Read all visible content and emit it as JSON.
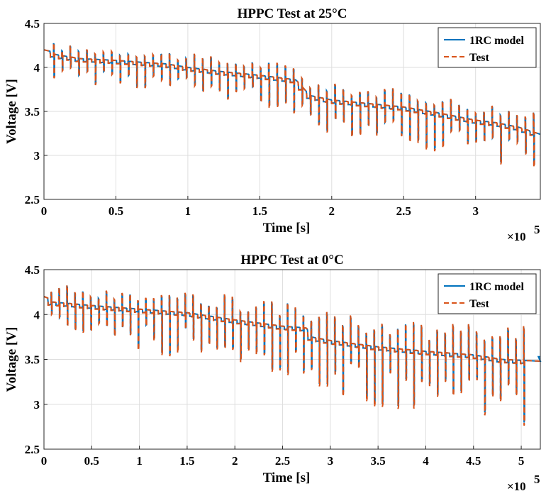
{
  "chart_data": [
    {
      "type": "line",
      "title": "HPPC Test at 25°C",
      "xlabel": "Time [s]",
      "ylabel": "Voltage [V]",
      "x_multiplier": "×10",
      "x_multiplier_exp": "5",
      "xlim": [
        0,
        3.45
      ],
      "ylim": [
        2.5,
        4.5
      ],
      "x_ticks": [
        0,
        0.5,
        1,
        1.5,
        2,
        2.5,
        3
      ],
      "x_tick_labels": [
        "0",
        "0.5",
        "1",
        "1.5",
        "2",
        "2.5",
        "3"
      ],
      "y_ticks": [
        2.5,
        3,
        3.5,
        4,
        4.5
      ],
      "y_tick_labels": [
        "2.5",
        "3",
        "3.5",
        "4",
        "4.5"
      ],
      "grid": true,
      "legend_position": "top-right",
      "series": [
        {
          "name": "1RC model",
          "color": "#0072bd",
          "style": "solid"
        },
        {
          "name": "Test",
          "color": "#d95319",
          "style": "dashed"
        }
      ],
      "baseline_voltage": [
        [
          0,
          4.2
        ],
        [
          0.05,
          4.18
        ],
        [
          0.07,
          4.15
        ],
        [
          0.25,
          4.1
        ],
        [
          0.5,
          4.08
        ],
        [
          0.75,
          4.05
        ],
        [
          0.85,
          4.04
        ],
        [
          1.0,
          4.0
        ],
        [
          1.25,
          3.95
        ],
        [
          1.5,
          3.91
        ],
        [
          1.75,
          3.86
        ],
        [
          1.85,
          3.68
        ],
        [
          2.0,
          3.63
        ],
        [
          2.25,
          3.59
        ],
        [
          2.5,
          3.55
        ],
        [
          2.75,
          3.48
        ],
        [
          3.0,
          3.4
        ],
        [
          3.15,
          3.37
        ],
        [
          3.3,
          3.32
        ],
        [
          3.45,
          3.24
        ]
      ],
      "pulse_spacing": 0.0575,
      "pulse_start": 0.07,
      "pulse_end": 3.43,
      "pulse_up_depth": 0.15,
      "pulse_down_depth": 0.2,
      "pulse_depth_growth": 0.25
    },
    {
      "type": "line",
      "title": "HPPC Test at 0°C",
      "xlabel": "Time [s]",
      "ylabel": "Voltage [V]",
      "x_multiplier": "×10",
      "x_multiplier_exp": "5",
      "xlim": [
        0,
        5.2
      ],
      "ylim": [
        2.5,
        4.5
      ],
      "x_ticks": [
        0,
        0.5,
        1,
        1.5,
        2,
        2.5,
        3,
        3.5,
        4,
        4.5,
        5
      ],
      "x_tick_labels": [
        "0",
        "0.5",
        "1",
        "1.5",
        "2",
        "2.5",
        "3",
        "3.5",
        "4",
        "4.5",
        "5"
      ],
      "y_ticks": [
        2.5,
        3,
        3.5,
        4,
        4.5
      ],
      "y_tick_labels": [
        "2.5",
        "3",
        "3.5",
        "4",
        "4.5"
      ],
      "grid": true,
      "legend_position": "top-right",
      "series": [
        {
          "name": "1RC model",
          "color": "#0072bd",
          "style": "solid"
        },
        {
          "name": "Test",
          "color": "#d95319",
          "style": "dashed"
        }
      ],
      "baseline_voltage": [
        [
          0,
          4.2
        ],
        [
          0.05,
          4.18
        ],
        [
          0.08,
          4.14
        ],
        [
          0.5,
          4.1
        ],
        [
          1.0,
          4.06
        ],
        [
          1.5,
          4.02
        ],
        [
          2.0,
          3.94
        ],
        [
          2.5,
          3.87
        ],
        [
          2.75,
          3.85
        ],
        [
          2.8,
          3.75
        ],
        [
          3.0,
          3.71
        ],
        [
          3.5,
          3.64
        ],
        [
          4.0,
          3.59
        ],
        [
          4.5,
          3.55
        ],
        [
          4.8,
          3.5
        ],
        [
          5.0,
          3.49
        ],
        [
          5.2,
          3.48
        ]
      ],
      "model_end_value": 3.53,
      "pulse_spacing": 0.0825,
      "pulse_start": 0.08,
      "pulse_end": 5.1,
      "pulse_up_depth": 0.22,
      "pulse_down_depth": 0.28,
      "pulse_depth_growth": 0.35
    }
  ]
}
